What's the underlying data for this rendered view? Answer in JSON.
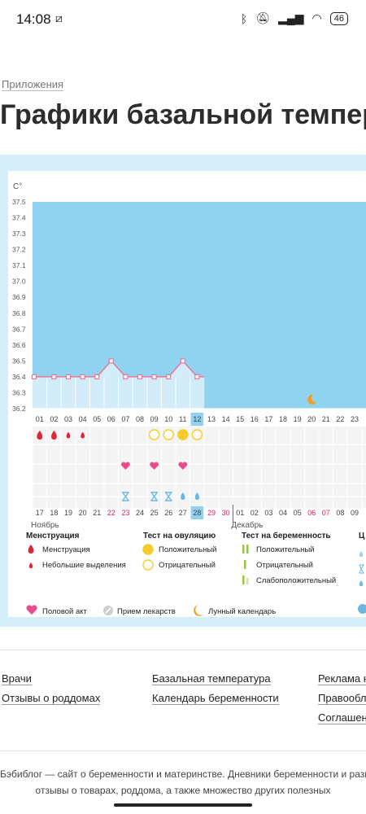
{
  "status_bar": {
    "time": "14:08",
    "battery": "46",
    "icons": [
      "bluetooth-icon",
      "mute-icon",
      "signal-icon",
      "wifi-icon"
    ]
  },
  "breadcrumb": "Приложения",
  "page_title": "Графики базальной темпер",
  "colors": {
    "plot_fill": "#8fd3f0",
    "bar_fill": "#d2ecfa",
    "line": "#e57b96",
    "sex": "#ea4b8b",
    "blood": "#e0243a",
    "ov_pos": "#f7cc2a",
    "ov_neg": "#f7cc2a",
    "preg": "#9bc53d",
    "moon": "#f0a020",
    "weekend": "#e0245e"
  },
  "chart_data": {
    "type": "line",
    "ylabel": "C°",
    "y_ticks": [
      "37.5",
      "37.4",
      "37.3",
      "37.2",
      "37.1",
      "37.0",
      "36.9",
      "36.8",
      "36.7",
      "36.6",
      "36.5",
      "36.4",
      "36.3",
      "36.2"
    ],
    "ylim": [
      36.2,
      37.5
    ],
    "days": [
      "01",
      "02",
      "03",
      "04",
      "05",
      "06",
      "07",
      "08",
      "09",
      "10",
      "11",
      "12",
      "13",
      "14",
      "15",
      "16",
      "17",
      "18",
      "19",
      "20",
      "21",
      "22",
      "23"
    ],
    "temperatures": [
      36.4,
      36.4,
      36.4,
      36.4,
      36.4,
      36.5,
      36.4,
      36.4,
      36.4,
      36.4,
      36.5,
      36.4
    ],
    "current_day_index": 11,
    "dates": [
      "17",
      "18",
      "19",
      "20",
      "21",
      "22",
      "23",
      "24",
      "25",
      "26",
      "27",
      "28",
      "29",
      "30",
      "01",
      "02",
      "03",
      "04",
      "05",
      "06",
      "07",
      "08",
      "09"
    ],
    "weekend_indices": [
      5,
      6,
      12,
      13,
      19,
      20
    ],
    "highlight_date_index": 11,
    "month_labels": [
      {
        "text": "Ноябрь",
        "index": 0
      },
      {
        "text": "Декабрь",
        "index": 14
      }
    ],
    "markers": {
      "menstruation": [
        {
          "i": 0,
          "size": "big"
        },
        {
          "i": 1,
          "size": "big"
        },
        {
          "i": 2,
          "size": "small"
        },
        {
          "i": 3,
          "size": "small"
        }
      ],
      "ovulation": [
        {
          "i": 8,
          "kind": "neg"
        },
        {
          "i": 9,
          "kind": "neg"
        },
        {
          "i": 10,
          "kind": "pos"
        },
        {
          "i": 11,
          "kind": "neg"
        }
      ],
      "sex": [
        6,
        8,
        10
      ],
      "hourglass": [
        6,
        8,
        9
      ],
      "drop": [
        10,
        11
      ],
      "moon": [
        19
      ]
    }
  },
  "legend": {
    "menstruation": {
      "title": "Менструация",
      "items": [
        "Менструация",
        "Небольшие выделения"
      ]
    },
    "ovulation_test": {
      "title": "Тест на овуляцию",
      "items": [
        "Положительный",
        "Отрицательный"
      ]
    },
    "pregnancy_test": {
      "title": "Тест на беременность",
      "items": [
        "Положительный",
        "Отрицательный",
        "Слабоположительный"
      ]
    },
    "cut_title": "Ц",
    "bottom": [
      "Половой акт",
      "Прием лекарств",
      "Лунный календарь"
    ]
  },
  "footer": {
    "col1": [
      "Врачи",
      "Отзывы о роддомах"
    ],
    "col2": [
      "Базальная температура",
      "Календарь беременности"
    ],
    "col3": [
      "Реклама н",
      "Правообла",
      "Соглашени"
    ],
    "desc1": "Бэбиблог — сайт о беременности и материнстве. Дневники беременности и разв",
    "desc2": "отзывы о товарах, роддома, а также множество других полезных"
  }
}
